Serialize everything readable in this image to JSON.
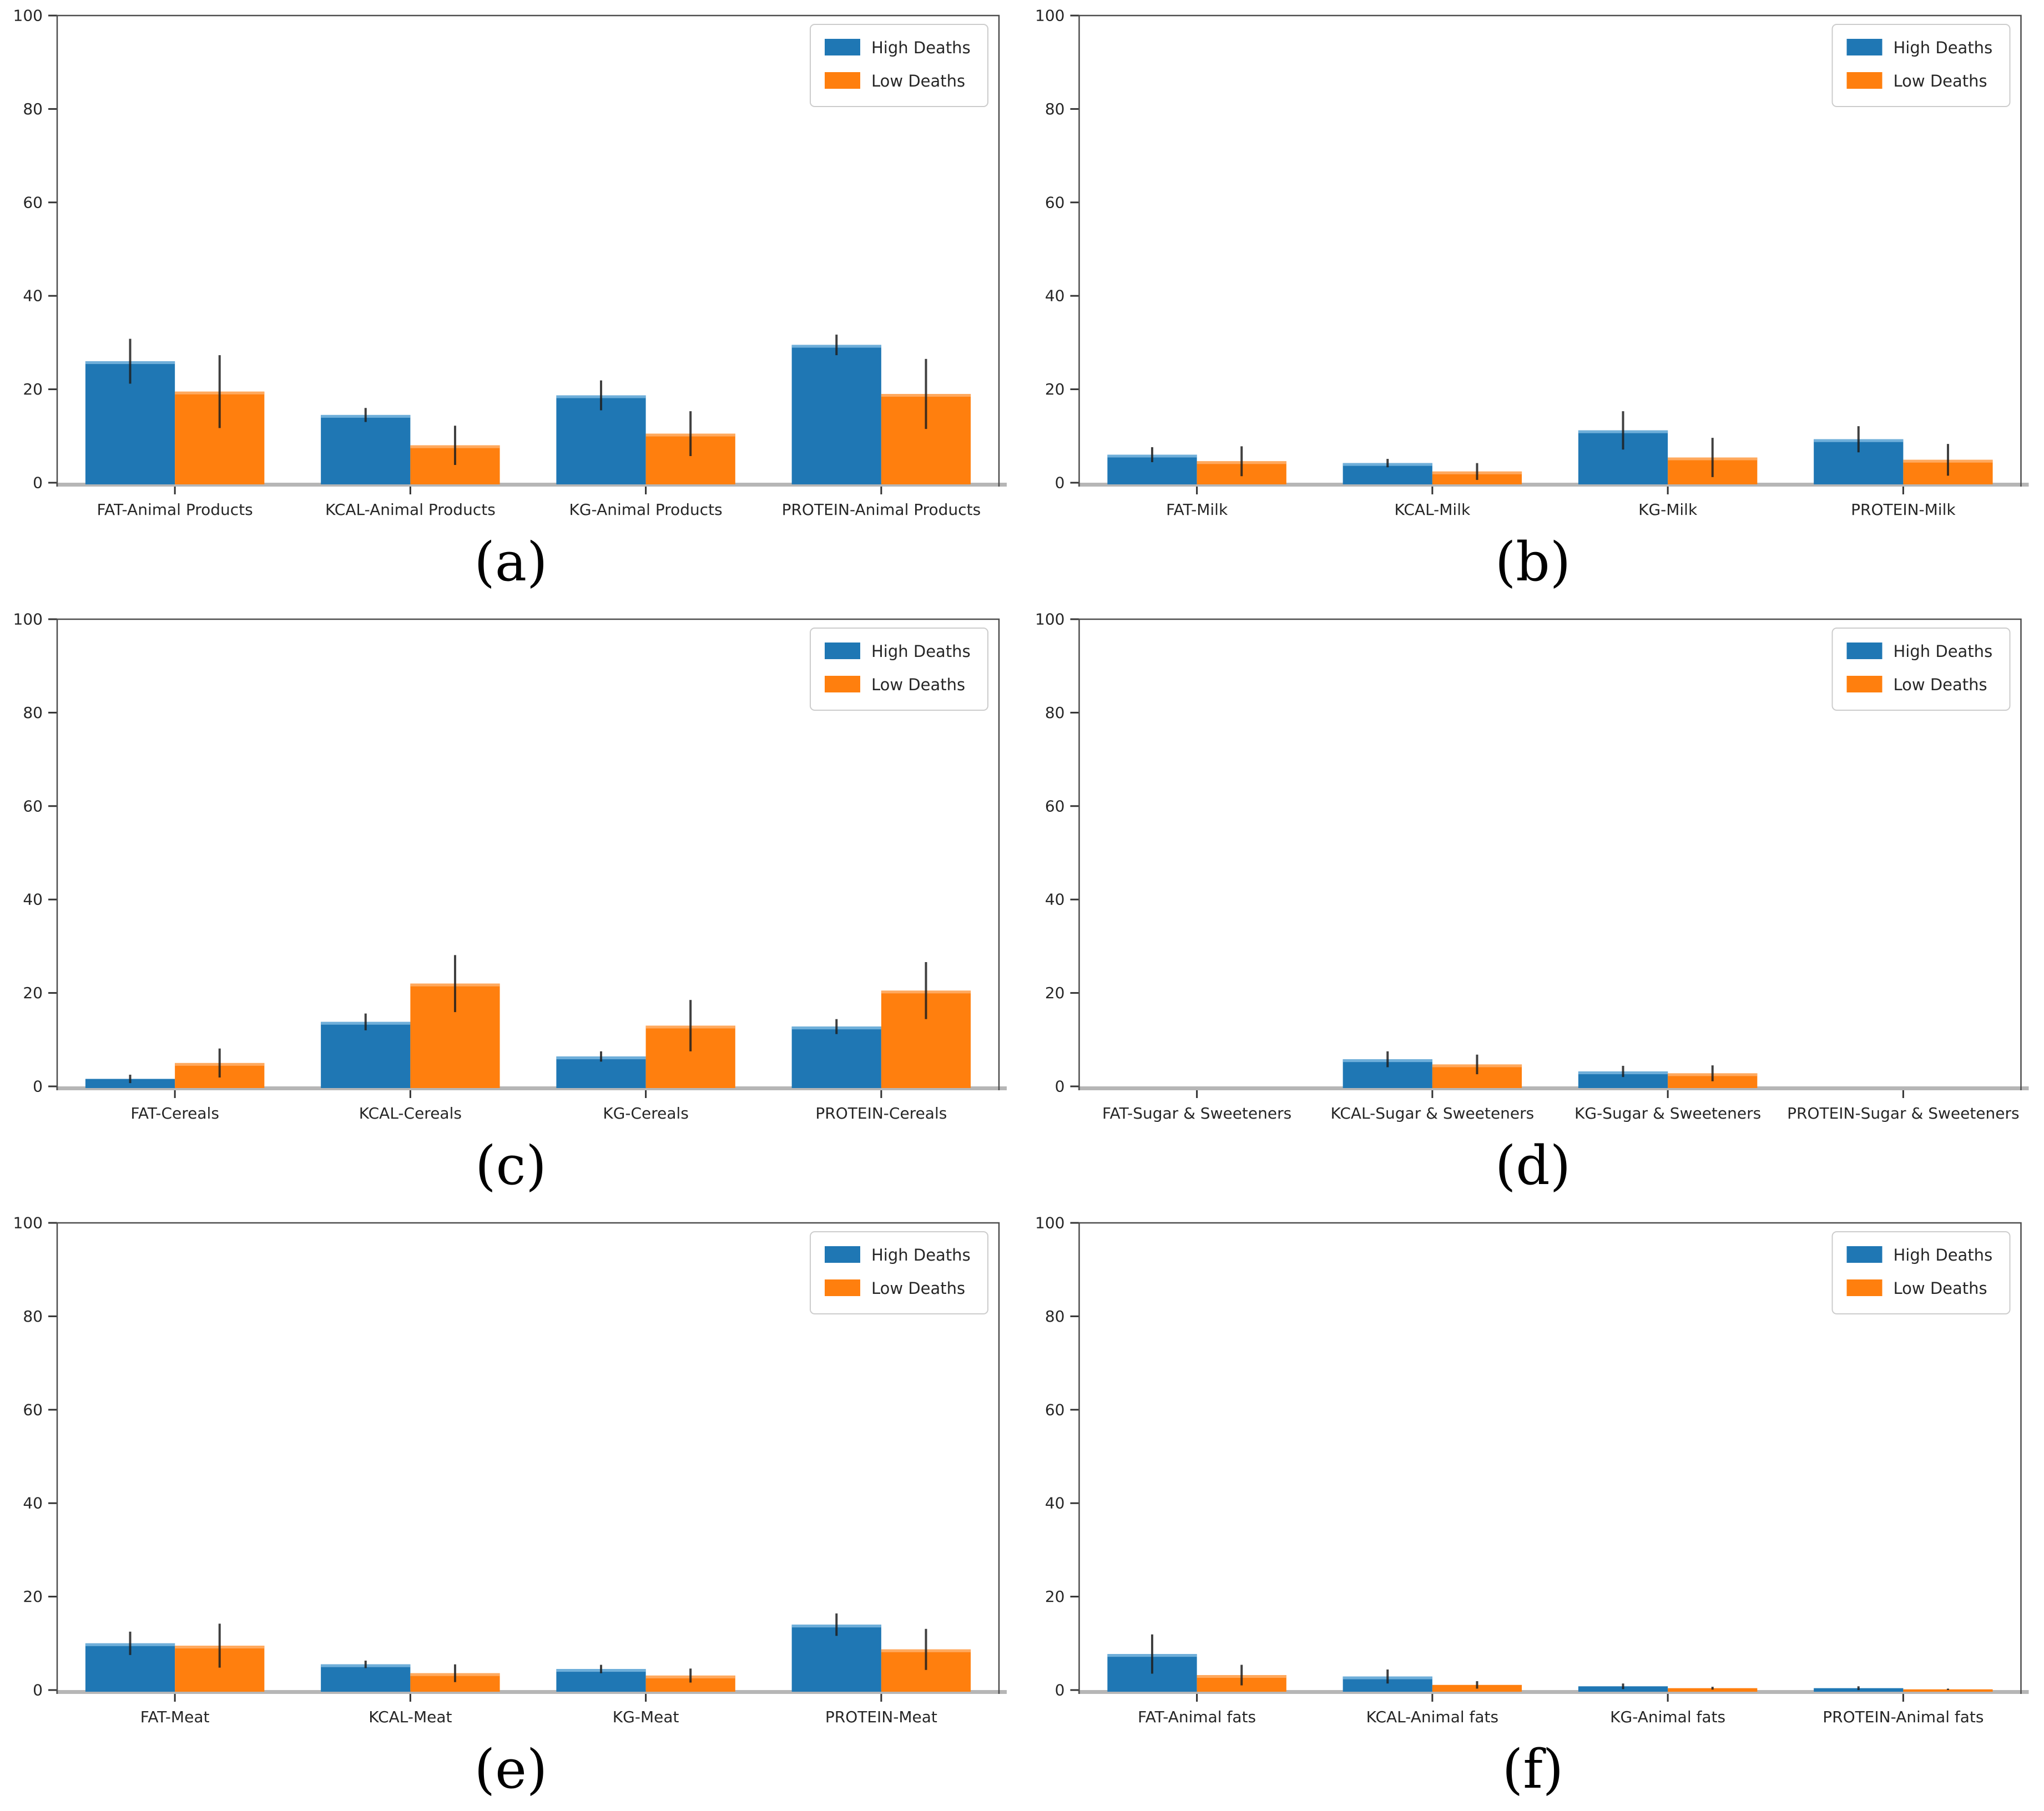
{
  "figure": {
    "legend": {
      "position": "upper right",
      "entries": [
        {
          "label": "High Deaths",
          "color": "#1f77b4"
        },
        {
          "label": "Low Deaths",
          "color": "#ff7f0e"
        }
      ]
    },
    "error_bar_color": "#1f1f1f",
    "axis_color": "#4d4d4d",
    "baseline_color": "#b6b6b6",
    "bar_cap_colors": {
      "#1f77b4": "#6fafda",
      "#ff7f0e": "#ffa95e"
    }
  },
  "chart_data": [
    {
      "panel": "(a)",
      "type": "bar",
      "title": "",
      "xlabel": "",
      "ylabel": "",
      "ylim": [
        0,
        100
      ],
      "yticks": [
        0,
        20,
        40,
        60,
        80,
        100
      ],
      "grid": false,
      "legend_position": "upper right",
      "categories": [
        "FAT-Animal Products",
        "KCAL-Animal Products",
        "KG-Animal Products",
        "PROTEIN-Animal Products"
      ],
      "series": [
        {
          "name": "High Deaths",
          "color": "#1f77b4",
          "values": [
            26.0,
            14.5,
            18.7,
            29.5
          ],
          "errors": [
            4.8,
            1.5,
            3.2,
            2.2
          ]
        },
        {
          "name": "Low Deaths",
          "color": "#ff7f0e",
          "values": [
            19.5,
            8.0,
            10.5,
            19.0
          ],
          "errors": [
            7.8,
            4.2,
            4.8,
            7.5
          ]
        }
      ]
    },
    {
      "panel": "(b)",
      "type": "bar",
      "title": "",
      "xlabel": "",
      "ylabel": "",
      "ylim": [
        0,
        100
      ],
      "yticks": [
        0,
        20,
        40,
        60,
        80,
        100
      ],
      "grid": false,
      "legend_position": "upper right",
      "categories": [
        "FAT-Milk",
        "KCAL-Milk",
        "KG-Milk",
        "PROTEIN-Milk"
      ],
      "series": [
        {
          "name": "High Deaths",
          "color": "#1f77b4",
          "values": [
            6.0,
            4.2,
            11.2,
            9.3
          ],
          "errors": [
            1.6,
            0.9,
            4.1,
            2.8
          ]
        },
        {
          "name": "Low Deaths",
          "color": "#ff7f0e",
          "values": [
            4.6,
            2.4,
            5.4,
            4.9
          ],
          "errors": [
            3.2,
            1.8,
            4.2,
            3.4
          ]
        }
      ]
    },
    {
      "panel": "(c)",
      "type": "bar",
      "title": "",
      "xlabel": "",
      "ylabel": "",
      "ylim": [
        0,
        100
      ],
      "yticks": [
        0,
        20,
        40,
        60,
        80,
        100
      ],
      "grid": false,
      "legend_position": "upper right",
      "categories": [
        "FAT-Cereals",
        "KCAL-Cereals",
        "KG-Cereals",
        "PROTEIN-Cereals"
      ],
      "series": [
        {
          "name": "High Deaths",
          "color": "#1f77b4",
          "values": [
            1.6,
            13.8,
            6.4,
            12.8
          ],
          "errors": [
            0.9,
            1.8,
            1.1,
            1.6
          ]
        },
        {
          "name": "Low Deaths",
          "color": "#ff7f0e",
          "values": [
            5.0,
            22.0,
            13.0,
            20.5
          ],
          "errors": [
            3.1,
            6.1,
            5.5,
            6.1
          ]
        }
      ]
    },
    {
      "panel": "(d)",
      "type": "bar",
      "title": "",
      "xlabel": "",
      "ylabel": "",
      "ylim": [
        0,
        100
      ],
      "yticks": [
        0,
        20,
        40,
        60,
        80,
        100
      ],
      "grid": false,
      "legend_position": "upper right",
      "categories": [
        "FAT-Sugar & Sweeteners",
        "KCAL-Sugar & Sweeteners",
        "KG-Sugar & Sweeteners",
        "PROTEIN-Sugar & Sweeteners"
      ],
      "series": [
        {
          "name": "High Deaths",
          "color": "#1f77b4",
          "values": [
            0,
            5.8,
            3.2,
            0
          ],
          "errors": [
            0,
            1.7,
            1.2,
            0
          ]
        },
        {
          "name": "Low Deaths",
          "color": "#ff7f0e",
          "values": [
            0,
            4.7,
            2.8,
            0
          ],
          "errors": [
            0,
            2.1,
            1.7,
            0
          ]
        }
      ]
    },
    {
      "panel": "(e)",
      "type": "bar",
      "title": "",
      "xlabel": "",
      "ylabel": "",
      "ylim": [
        0,
        100
      ],
      "yticks": [
        0,
        20,
        40,
        60,
        80,
        100
      ],
      "grid": false,
      "legend_position": "upper right",
      "categories": [
        "FAT-Meat",
        "KCAL-Meat",
        "KG-Meat",
        "PROTEIN-Meat"
      ],
      "series": [
        {
          "name": "High Deaths",
          "color": "#1f77b4",
          "values": [
            10.0,
            5.5,
            4.5,
            14.0
          ],
          "errors": [
            2.5,
            0.8,
            0.9,
            2.4
          ]
        },
        {
          "name": "Low Deaths",
          "color": "#ff7f0e",
          "values": [
            9.5,
            3.6,
            3.1,
            8.7
          ],
          "errors": [
            4.7,
            1.9,
            1.5,
            4.4
          ]
        }
      ]
    },
    {
      "panel": "(f)",
      "type": "bar",
      "title": "",
      "xlabel": "",
      "ylabel": "",
      "ylim": [
        0,
        100
      ],
      "yticks": [
        0,
        20,
        40,
        60,
        80,
        100
      ],
      "grid": false,
      "legend_position": "upper right",
      "categories": [
        "FAT-Animal fats",
        "KCAL-Animal fats",
        "KG-Animal fats",
        "PROTEIN-Animal fats"
      ],
      "series": [
        {
          "name": "High Deaths",
          "color": "#1f77b4",
          "values": [
            7.7,
            2.9,
            0.8,
            0.4
          ],
          "errors": [
            4.2,
            1.5,
            0.6,
            0.4
          ]
        },
        {
          "name": "Low Deaths",
          "color": "#ff7f0e",
          "values": [
            3.2,
            1.1,
            0.4,
            0.15
          ],
          "errors": [
            2.2,
            0.8,
            0.3,
            0.15
          ]
        }
      ]
    }
  ]
}
